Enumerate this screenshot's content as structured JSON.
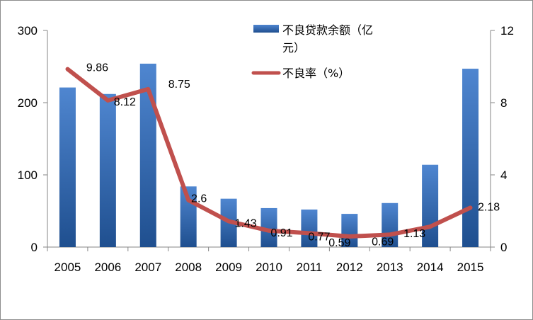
{
  "chart_data": {
    "type": "bar+line",
    "categories": [
      "2005",
      "2006",
      "2007",
      "2008",
      "2009",
      "2010",
      "2011",
      "2012",
      "2013",
      "2014",
      "2015"
    ],
    "series": [
      {
        "name": "不良贷款余额（亿元）",
        "type": "bar",
        "axis": "left",
        "values": [
          221,
          212,
          254,
          84,
          67,
          54,
          52,
          46,
          61,
          114,
          247
        ]
      },
      {
        "name": "不良率（%）",
        "type": "line",
        "axis": "right",
        "values": [
          9.86,
          8.12,
          8.75,
          2.6,
          1.43,
          0.91,
          0.77,
          0.59,
          0.69,
          1.13,
          2.18
        ],
        "data_labels": [
          "9.86",
          "8.12",
          "8.75",
          "2.6",
          "1.43",
          "0.91",
          "0.77",
          "0.59",
          "0.69",
          "1.13",
          "2.18"
        ]
      }
    ],
    "y_left": {
      "ticks": [
        "0",
        "100",
        "200",
        "300"
      ],
      "min": 0,
      "max": 300
    },
    "y_right": {
      "ticks": [
        "0",
        "4",
        "8",
        "12"
      ],
      "min": 0,
      "max": 12
    },
    "legend": {
      "placement": "top-right",
      "bar_label_line1": "不良贷款余额（亿",
      "bar_label_line2": "元）",
      "line_label": "不良率（%）"
    },
    "grid": false,
    "colors": {
      "bar_top": "#4f86d0",
      "bar_bottom": "#1f4f8f",
      "line": "#c0504d"
    }
  }
}
